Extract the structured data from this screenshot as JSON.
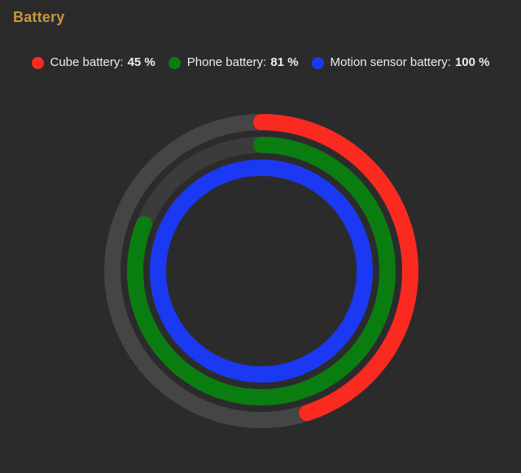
{
  "card": {
    "title": "Battery",
    "title_color": "#c9973f",
    "background_color": "#2b2b2b"
  },
  "legend": {
    "text_color": "#ededed",
    "items": [
      {
        "label": "Cube battery:",
        "value": "45 %"
      },
      {
        "label": "Phone battery:",
        "value": "81 %"
      },
      {
        "label": "Motion sensor battery:",
        "value": "100 %"
      }
    ]
  },
  "chart_data": {
    "type": "radialBar",
    "title": "Battery",
    "unit": "%",
    "series": [
      {
        "name": "Cube battery",
        "percent": 45,
        "color": "#fa2a21",
        "track_color": "#454545",
        "radius": 183
      },
      {
        "name": "Phone battery",
        "percent": 81,
        "color": "#0a7d11",
        "track_color": "#3b3b3b",
        "radius": 155
      },
      {
        "name": "Motion sensor battery",
        "percent": 100,
        "color": "#1b38f2",
        "track_color": "#3b3b3b",
        "radius": 127
      }
    ],
    "value_range": [
      0,
      100
    ],
    "start_angle_deg": 0,
    "direction": "clockwise",
    "stroke_width": 20,
    "stroke_linecap": "round",
    "center": {
      "x": 321,
      "y": 333
    },
    "legend_position": "top",
    "grid": "off"
  }
}
